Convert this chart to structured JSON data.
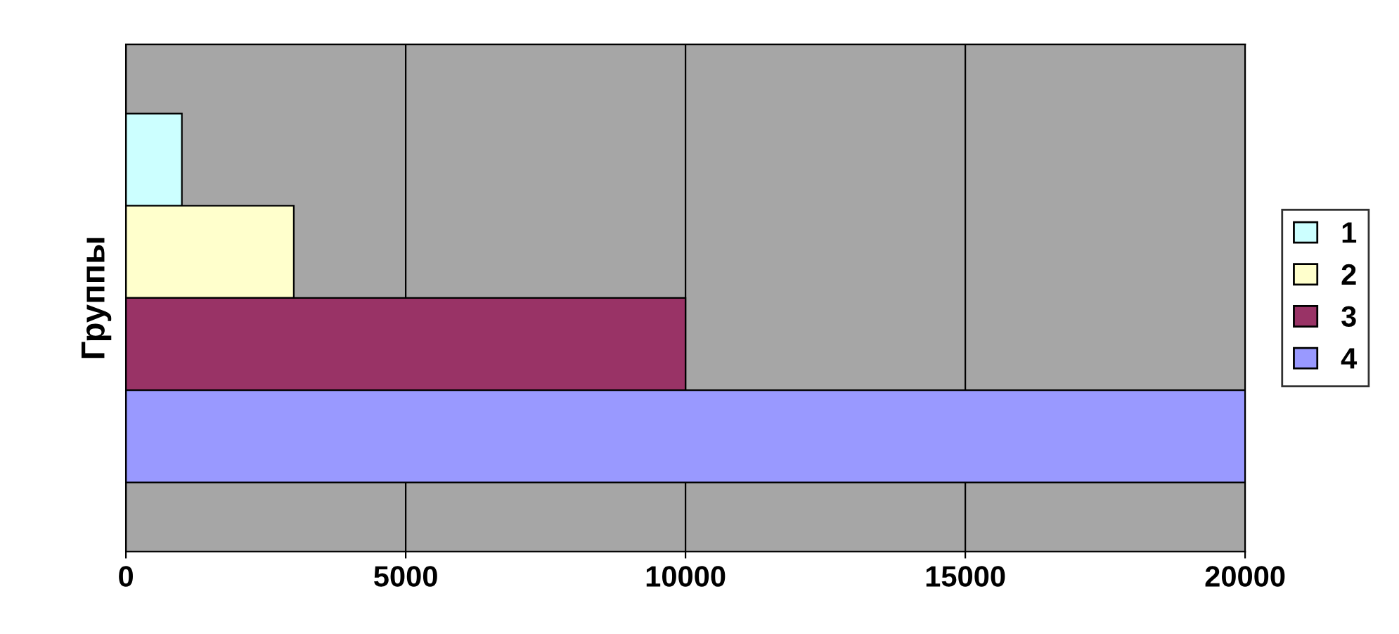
{
  "chart_data": {
    "type": "bar",
    "orientation": "horizontal",
    "ylabel": "Группы",
    "categories": [
      null
    ],
    "series": [
      {
        "name": "1",
        "color": "#ccffff",
        "values": [
          1000
        ]
      },
      {
        "name": "2",
        "color": "#ffffcc",
        "values": [
          3000
        ]
      },
      {
        "name": "3",
        "color": "#993366",
        "values": [
          10000
        ]
      },
      {
        "name": "4",
        "color": "#9999ff",
        "values": [
          20000
        ]
      }
    ],
    "xlim": [
      0,
      20000
    ],
    "xticks": [
      0,
      5000,
      10000,
      15000,
      20000
    ],
    "grid": "x",
    "legend": "right"
  }
}
